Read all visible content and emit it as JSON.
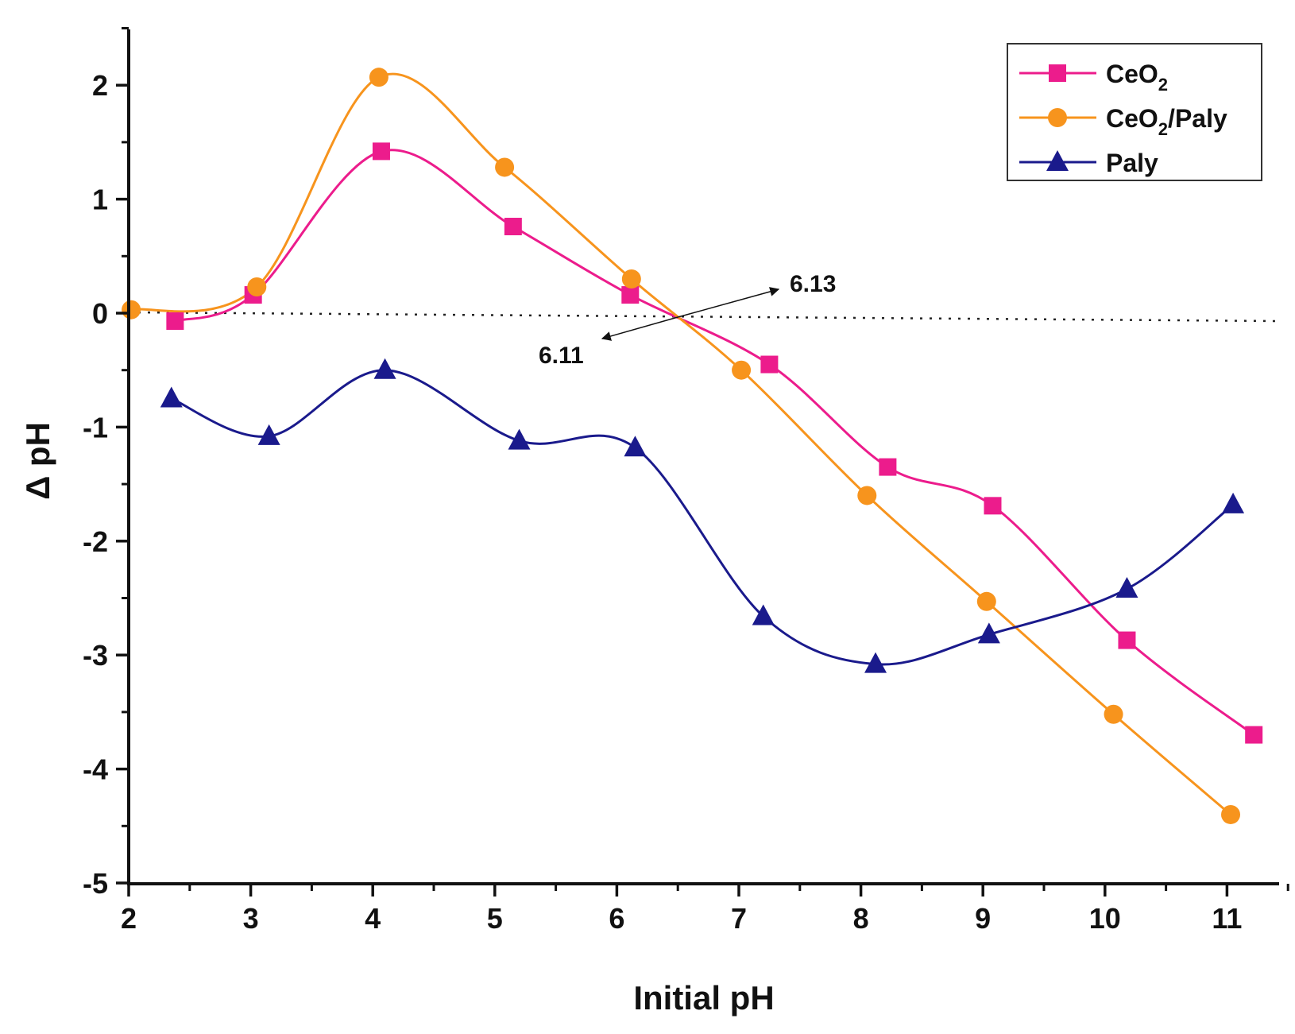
{
  "chart_data": {
    "type": "line",
    "title": "",
    "xlabel": "Initial pH",
    "ylabel": "Δ pH",
    "xlim": [
      2,
      11.5
    ],
    "ylim": [
      -5,
      2.5
    ],
    "xticks": [
      2,
      3,
      4,
      5,
      6,
      7,
      8,
      9,
      10,
      11
    ],
    "yticks": [
      -5,
      -4,
      -3,
      -2,
      -1,
      0,
      1,
      2
    ],
    "legend_position": "top-right",
    "series": [
      {
        "name": "CeO2",
        "label_main": "CeO",
        "label_sub": "2",
        "label_tail": "",
        "marker": "square",
        "color": "#EC1C8C",
        "x": [
          2.38,
          3.02,
          4.07,
          5.15,
          6.11,
          7.25,
          8.22,
          9.08,
          10.18,
          11.22
        ],
        "y": [
          -0.07,
          0.16,
          1.42,
          0.76,
          0.16,
          -0.45,
          -1.35,
          -1.69,
          -2.87,
          -3.7
        ]
      },
      {
        "name": "CeO2/Paly",
        "label_main": "CeO",
        "label_sub": "2",
        "label_tail": "/Paly",
        "marker": "circle",
        "color": "#F7941D",
        "x": [
          2.02,
          3.05,
          4.05,
          5.08,
          6.12,
          7.02,
          8.05,
          9.03,
          10.07,
          11.03
        ],
        "y": [
          0.03,
          0.23,
          2.07,
          1.28,
          0.3,
          -0.5,
          -1.6,
          -2.53,
          -3.52,
          -4.4
        ]
      },
      {
        "name": "Paly",
        "label_main": "Paly",
        "label_sub": "",
        "label_tail": "",
        "marker": "triangle",
        "color": "#1A1A8C",
        "x": [
          2.35,
          3.15,
          4.1,
          5.2,
          6.15,
          7.2,
          8.12,
          9.05,
          10.18,
          11.05
        ],
        "y": [
          -0.75,
          -1.08,
          -0.5,
          -1.12,
          -1.18,
          -2.66,
          -3.08,
          -2.82,
          -2.42,
          -1.68
        ]
      }
    ],
    "reference_line": {
      "y": 0,
      "style": "dotted"
    },
    "annotations": [
      {
        "text": "6.13",
        "x": 6.13
      },
      {
        "text": "6.11",
        "x": 6.11
      }
    ]
  }
}
